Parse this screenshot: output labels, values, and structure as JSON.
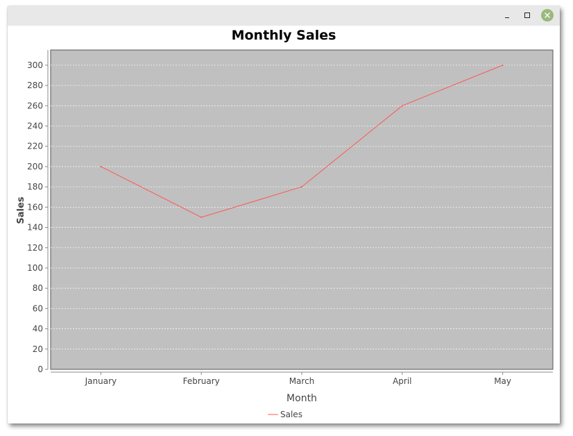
{
  "window": {
    "buttons": {
      "minimize_icon": "minimize-icon",
      "maximize_icon": "maximize-icon",
      "close_icon": "close-icon"
    }
  },
  "colors": {
    "plot_background": "#c0c0c0",
    "series_line": "#ff5555",
    "gridline": "#ffffff",
    "close_button": "#9ab97a"
  },
  "chart_data": {
    "type": "line",
    "title": "Monthly Sales",
    "xlabel": "Month",
    "ylabel": "Sales",
    "categories": [
      "January",
      "February",
      "March",
      "April",
      "May"
    ],
    "series": [
      {
        "name": "Sales",
        "values": [
          200,
          150,
          180,
          260,
          300
        ]
      }
    ],
    "ylim": [
      0,
      315
    ],
    "yticks": [
      0,
      20,
      40,
      60,
      80,
      100,
      120,
      140,
      160,
      180,
      200,
      220,
      240,
      260,
      280,
      300
    ],
    "grid": true,
    "legend": "bottom"
  }
}
